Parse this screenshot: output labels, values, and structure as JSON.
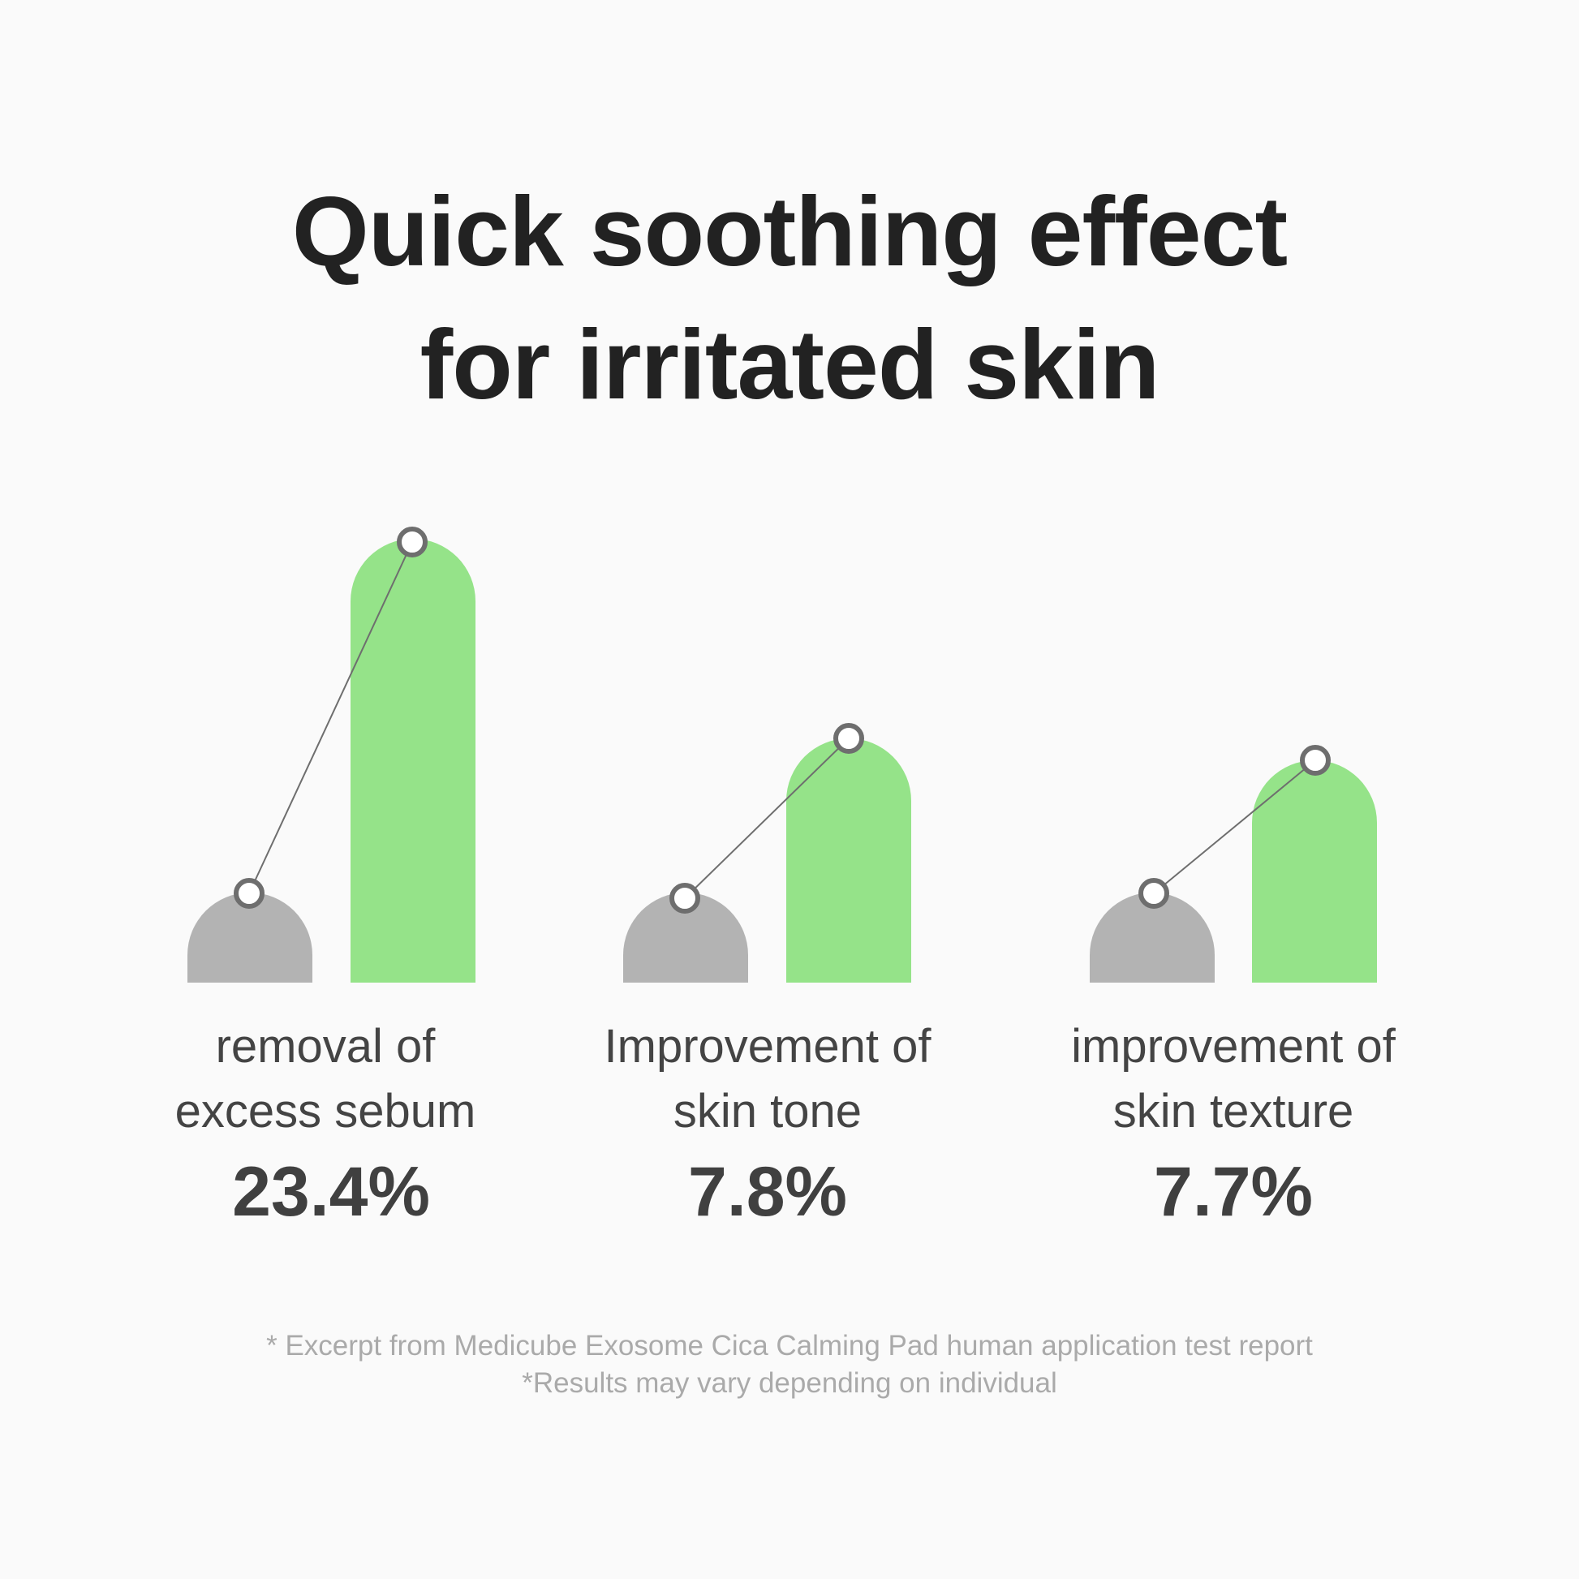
{
  "title": {
    "line1": "Quick soothing effect",
    "line2": "for irritated skin"
  },
  "colors": {
    "before": "#b3b3b3",
    "after": "#95e389",
    "marker": "#6e6e6e",
    "text": "#444444"
  },
  "chart_data": {
    "type": "bar",
    "title": "Quick soothing effect for irritated skin",
    "categories": [
      {
        "line1": "removal of",
        "line2": "excess sebum",
        "value_label": "23.4%"
      },
      {
        "line1": "Improvement of",
        "line2": "skin tone",
        "value_label": "7.8%"
      },
      {
        "line1": "improvement of",
        "line2": "skin texture",
        "value_label": "7.7%"
      }
    ],
    "values": [
      23.4,
      7.8,
      7.7
    ],
    "unit": "%"
  },
  "footnotes": [
    "* Excerpt from Medicube Exosome Cica Calming Pad human application test report",
    "*Results may vary depending on individual"
  ]
}
